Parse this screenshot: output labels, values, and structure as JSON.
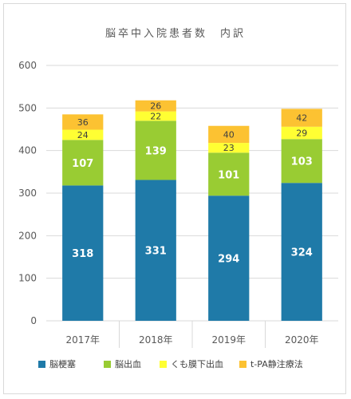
{
  "chart_data": {
    "type": "bar",
    "stacked": true,
    "title": "脳卒中入院患者数　内訳",
    "categories": [
      "2017年",
      "2018年",
      "2019年",
      "2020年"
    ],
    "series": [
      {
        "name": "脳梗塞",
        "values": [
          318,
          331,
          294,
          324
        ],
        "color": "#1f7aa8"
      },
      {
        "name": "脳出血",
        "values": [
          107,
          139,
          101,
          103
        ],
        "color": "#99cc33"
      },
      {
        "name": "くも膜下出血",
        "values": [
          24,
          22,
          23,
          29
        ],
        "color": "#ffff33"
      },
      {
        "name": "t-PA静注療法",
        "values": [
          36,
          26,
          40,
          42
        ],
        "color": "#fcc232"
      }
    ],
    "ylim": [
      0,
      600
    ],
    "yticks": [
      0,
      100,
      200,
      300,
      400,
      500,
      600
    ],
    "grid": true,
    "legend": "bottom"
  }
}
